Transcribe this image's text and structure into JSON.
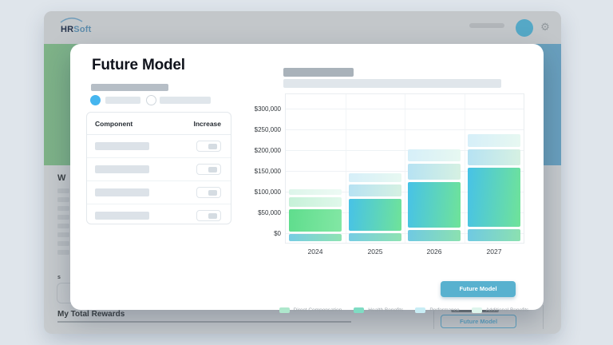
{
  "brand": {
    "hr": "HR",
    "soft": "Soft"
  },
  "page": {
    "left_heading_fragment": "W",
    "left_small_fragment": "s",
    "left_list_count": 8,
    "bottom_heading": "My Total Rewards",
    "sidebar_button_label": "Future Model"
  },
  "modal": {
    "title": "Future Model",
    "table": {
      "headers": [
        "Component",
        "Increase"
      ],
      "row_count": 4
    },
    "primary_button_label": "Future Model"
  },
  "chart_data": {
    "type": "bar",
    "stacked": true,
    "categories": [
      "2024",
      "2025",
      "2026",
      "2027"
    ],
    "series": [
      {
        "name": "Health Benefits",
        "values": [
          17000,
          19000,
          27000,
          28000
        ]
      },
      {
        "name": "Direct Compensation",
        "values": [
          54000,
          77000,
          110000,
          142000
        ]
      },
      {
        "name": "Performance",
        "values": [
          23000,
          29000,
          38000,
          38000
        ]
      },
      {
        "name": "Additional Benefits",
        "values": [
          13000,
          21000,
          29000,
          30000
        ]
      }
    ],
    "y_ticks": [
      {
        "label": "$300,000",
        "value": 300000
      },
      {
        "label": "$250,000",
        "value": 250000
      },
      {
        "label": "$200,000",
        "value": 200000
      },
      {
        "label": "$150,000",
        "value": 150000
      },
      {
        "label": "$100,000",
        "value": 100000
      },
      {
        "label": "$50,000",
        "value": 50000
      },
      {
        "label": "$0",
        "value": 0
      }
    ],
    "ylim": [
      0,
      300000
    ],
    "grid": true,
    "legend_position": "bottom",
    "legend": [
      {
        "label": "Direct Compensation",
        "color": "#aee7cc"
      },
      {
        "label": "Health Benefits",
        "color": "#7fdcc3"
      },
      {
        "label": "Performance",
        "color": "#c8edf5"
      },
      {
        "label": "Additional Benefits",
        "color": "#def5ec"
      }
    ],
    "segment_gradients": {
      "Health Benefits": [
        [
          "#76cce4",
          "#8fe3b2"
        ],
        [
          "#76cce4",
          "#8fe3b2"
        ],
        [
          "#6fc9e3",
          "#8ce1b0"
        ],
        [
          "#6fc9e3",
          "#8ce1b0"
        ]
      ],
      "Direct Compensation": [
        [
          "#5fdd8d",
          "#82e7a4"
        ],
        [
          "#47c2e7",
          "#6fe399"
        ],
        [
          "#47c2e7",
          "#6fe399"
        ],
        [
          "#47c2e7",
          "#6fe399"
        ]
      ],
      "Performance": [
        [
          "#c6f1d8",
          "#e0f8eb"
        ],
        [
          "#b6e2f3",
          "#d6f1e2"
        ],
        [
          "#b6e2f3",
          "#d6f1e2"
        ],
        [
          "#b6e2f3",
          "#d6f1e2"
        ]
      ],
      "Additional Benefits": [
        [
          "#ddf5ea",
          "#edfaf4"
        ],
        [
          "#d6eff9",
          "#e7f8f1"
        ],
        [
          "#d6eff9",
          "#e7f8f1"
        ],
        [
          "#d6eff9",
          "#e7f8f1"
        ]
      ]
    }
  },
  "colors": {
    "accent_button": "#58b1cf",
    "outline_button": "#5fa3c2",
    "avatar": "#55a8c6",
    "radio_selected": "#45b5ef",
    "hero_left": "#7eb287",
    "hero_right": "#699fbe"
  }
}
